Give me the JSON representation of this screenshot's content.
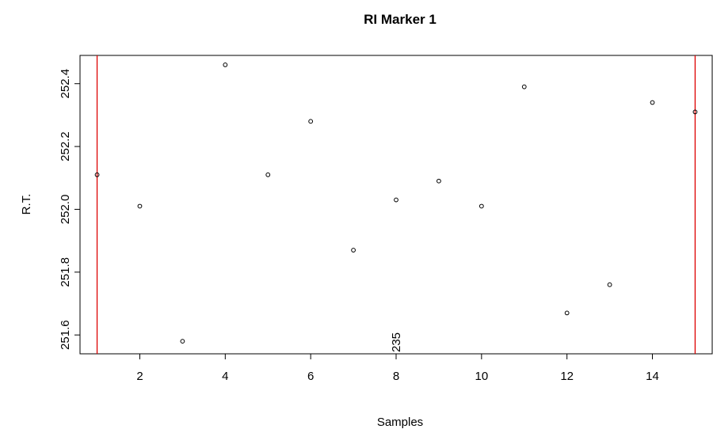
{
  "chart_data": {
    "type": "scatter",
    "title": "RI Marker 1",
    "xlabel": "Samples",
    "ylabel": "R.T.",
    "xlim": [
      0.6,
      15.4
    ],
    "ylim": [
      251.54,
      252.49
    ],
    "x_ticks": [
      2,
      4,
      6,
      8,
      10,
      12,
      14
    ],
    "y_ticks": [
      251.6,
      251.8,
      252.0,
      252.2,
      252.4
    ],
    "x_tick_labels": [
      "2",
      "4",
      "6",
      "8",
      "10",
      "12",
      "14"
    ],
    "y_tick_labels": [
      "251.6",
      "251.8",
      "252.0",
      "252.2",
      "252.4"
    ],
    "grid": false,
    "series": [
      {
        "marker": "open-circle",
        "color": "#000000",
        "points": [
          {
            "x": 1,
            "y": 252.11
          },
          {
            "x": 2,
            "y": 252.01
          },
          {
            "x": 3,
            "y": 251.58
          },
          {
            "x": 4,
            "y": 252.46
          },
          {
            "x": 5,
            "y": 252.11
          },
          {
            "x": 6,
            "y": 252.28
          },
          {
            "x": 7,
            "y": 251.87
          },
          {
            "x": 8,
            "y": 252.03
          },
          {
            "x": 9,
            "y": 252.09
          },
          {
            "x": 10,
            "y": 252.01
          },
          {
            "x": 11,
            "y": 252.39
          },
          {
            "x": 12,
            "y": 251.67
          },
          {
            "x": 13,
            "y": 251.76
          },
          {
            "x": 14,
            "y": 252.34
          },
          {
            "x": 15,
            "y": 252.31
          }
        ]
      }
    ],
    "vlines": [
      {
        "x": 1,
        "color": "#dd0000"
      },
      {
        "x": 15,
        "color": "#dd0000"
      }
    ],
    "annotations": [
      {
        "text": "235",
        "x": 8,
        "rotation": -90
      }
    ]
  }
}
